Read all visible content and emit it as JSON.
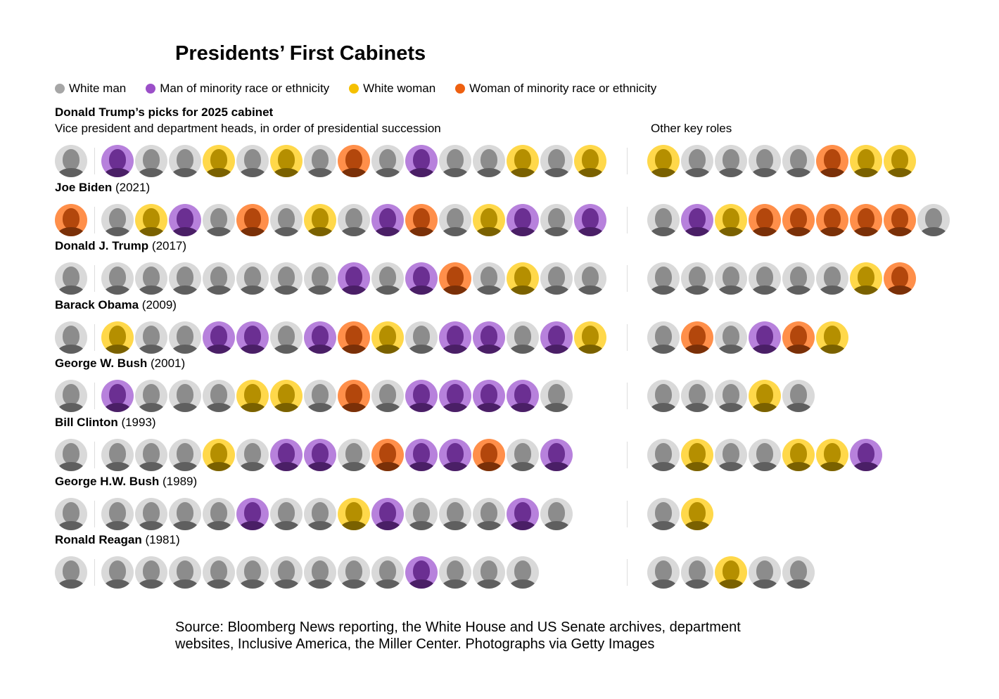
{
  "title": "Presidents’ First Cabinets",
  "colors": {
    "white_man": "#a6a6a6",
    "minority_man": "#9b4fc8",
    "white_woman": "#f5c000",
    "minority_woman": "#ee6010"
  },
  "legend": [
    {
      "key": "white_man",
      "label": "White man"
    },
    {
      "key": "minority_man",
      "label": "Man of minority race or ethnicity"
    },
    {
      "key": "white_woman",
      "label": "White woman"
    },
    {
      "key": "minority_woman",
      "label": "Woman of minority race or ethnicity"
    }
  ],
  "subheading": "Donald Trump’s picks for 2025 cabinet",
  "description": "Vice president and department heads, in order of presidential succession",
  "other_label": "Other key roles",
  "source": "Source: Bloomberg News reporting, the White House and US Senate archives, department websites, Inclusive America, the Miller Center. Photographs via Getty Images",
  "chart_data": {
    "type": "table",
    "category_codes": {
      "W": "White man",
      "M": "Man of minority race or ethnicity",
      "Y": "White woman",
      "O": "Woman of minority race or ethnicity"
    },
    "rows": [
      {
        "name": "",
        "year": "",
        "vp": "W",
        "departments": [
          "M",
          "W",
          "W",
          "Y",
          "W",
          "Y",
          "W",
          "O",
          "W",
          "M",
          "W",
          "W",
          "Y",
          "W",
          "Y"
        ],
        "other": [
          "Y",
          "W",
          "W",
          "W",
          "W",
          "O",
          "Y",
          "Y"
        ]
      },
      {
        "name": "Joe Biden",
        "year": "(2021)",
        "vp": "O",
        "departments": [
          "W",
          "Y",
          "M",
          "W",
          "O",
          "W",
          "Y",
          "W",
          "M",
          "O",
          "W",
          "Y",
          "M",
          "W",
          "M"
        ],
        "other": [
          "W",
          "M",
          "Y",
          "O",
          "O",
          "O",
          "O",
          "O",
          "W"
        ]
      },
      {
        "name": "Donald J. Trump",
        "year": "(2017)",
        "vp": "W",
        "departments": [
          "W",
          "W",
          "W",
          "W",
          "W",
          "W",
          "W",
          "M",
          "W",
          "M",
          "O",
          "W",
          "Y",
          "W",
          "W"
        ],
        "other": [
          "W",
          "W",
          "W",
          "W",
          "W",
          "W",
          "Y",
          "O"
        ]
      },
      {
        "name": "Barack Obama",
        "year": "(2009)",
        "vp": "W",
        "departments": [
          "Y",
          "W",
          "W",
          "M",
          "M",
          "W",
          "M",
          "O",
          "Y",
          "W",
          "M",
          "M",
          "W",
          "M",
          "Y"
        ],
        "other": [
          "W",
          "O",
          "W",
          "M",
          "O",
          "Y"
        ]
      },
      {
        "name": "George W. Bush",
        "year": "(2001)",
        "vp": "W",
        "departments": [
          "M",
          "W",
          "W",
          "W",
          "Y",
          "Y",
          "W",
          "O",
          "W",
          "M",
          "M",
          "M",
          "M",
          "W"
        ],
        "other": [
          "W",
          "W",
          "W",
          "Y",
          "W"
        ]
      },
      {
        "name": "Bill Clinton",
        "year": "(1993)",
        "vp": "W",
        "departments": [
          "W",
          "W",
          "W",
          "Y",
          "W",
          "M",
          "M",
          "W",
          "O",
          "M",
          "M",
          "O",
          "W",
          "M"
        ],
        "other": [
          "W",
          "Y",
          "W",
          "W",
          "Y",
          "Y",
          "M"
        ]
      },
      {
        "name": "George H.W. Bush",
        "year": "(1989)",
        "vp": "W",
        "departments": [
          "W",
          "W",
          "W",
          "W",
          "M",
          "W",
          "W",
          "Y",
          "M",
          "W",
          "W",
          "W",
          "M",
          "W"
        ],
        "other": [
          "W",
          "Y"
        ]
      },
      {
        "name": "Ronald Reagan",
        "year": "(1981)",
        "vp": "W",
        "departments": [
          "W",
          "W",
          "W",
          "W",
          "W",
          "W",
          "W",
          "W",
          "W",
          "M",
          "W",
          "W",
          "W"
        ],
        "other": [
          "W",
          "W",
          "Y",
          "W",
          "W"
        ]
      }
    ]
  }
}
